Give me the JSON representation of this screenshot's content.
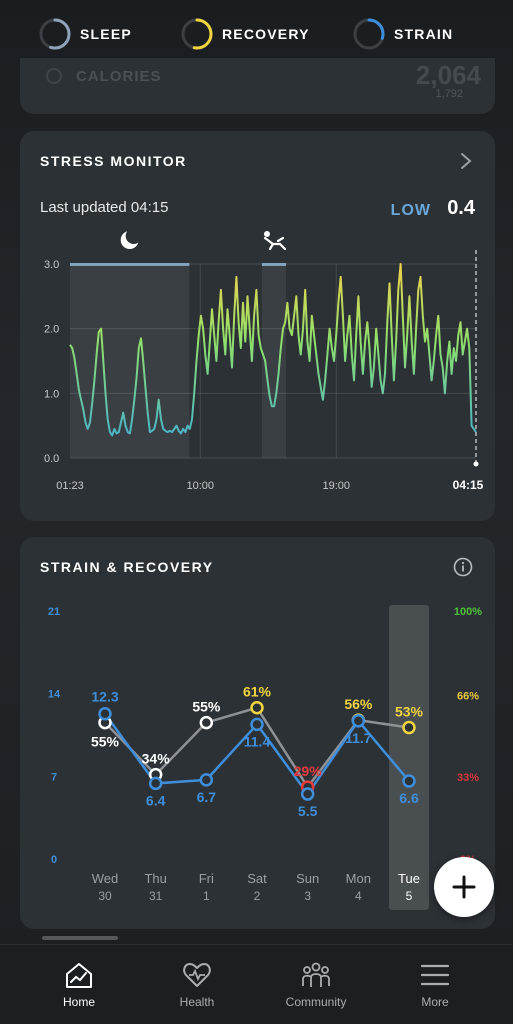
{
  "top_tabs": [
    {
      "label": "SLEEP",
      "color": "#8fa3b8",
      "fraction": 0.55
    },
    {
      "label": "RECOVERY",
      "color": "#f1d53f",
      "fraction": 0.53
    },
    {
      "label": "STRAIN",
      "color": "#3f8edb",
      "fraction": 0.3
    }
  ],
  "peek": {
    "label": "CALORIES",
    "value": "2,064",
    "sub": "1,792"
  },
  "stress": {
    "title": "STRESS MONITOR",
    "last_updated": "Last updated 04:15",
    "level_label": "LOW",
    "level_value": "0.4",
    "chart_data": {
      "type": "line",
      "y_ticks": [
        "3.0",
        "2.0",
        "1.0",
        "0.0"
      ],
      "ylim": [
        0,
        3
      ],
      "x_ticks": [
        "01:23",
        "10:00",
        "19:00",
        "04:15"
      ],
      "x_tick_hours": [
        0,
        8.62,
        17.62,
        26.87
      ],
      "xlim_hours": [
        0,
        26.87
      ],
      "sleep_band_hours": [
        0,
        7.9
      ],
      "rest_band_hours": [
        12.7,
        14.3
      ],
      "values": [
        1.75,
        1.7,
        1.55,
        1.3,
        1.05,
        0.9,
        0.75,
        0.55,
        0.45,
        0.55,
        0.85,
        1.2,
        1.6,
        1.95,
        2.0,
        1.5,
        1.0,
        0.6,
        0.4,
        0.35,
        0.45,
        0.38,
        0.4,
        0.55,
        0.7,
        0.5,
        0.4,
        0.38,
        0.6,
        0.9,
        1.25,
        1.7,
        1.85,
        1.5,
        1.1,
        0.7,
        0.4,
        0.42,
        0.45,
        0.6,
        0.9,
        0.6,
        0.45,
        0.42,
        0.4,
        0.42,
        0.4,
        0.45,
        0.5,
        0.42,
        0.38,
        0.45,
        0.4,
        0.5,
        0.45,
        0.6,
        1.0,
        1.5,
        1.9,
        2.2,
        2.0,
        1.6,
        1.3,
        1.8,
        2.3,
        1.9,
        1.5,
        2.1,
        2.6,
        2.0,
        1.6,
        2.3,
        1.9,
        1.4,
        2.2,
        2.8,
        2.1,
        1.7,
        2.4,
        1.8,
        2.5,
        2.0,
        1.5,
        2.2,
        2.6,
        1.9,
        1.7,
        1.6,
        1.5,
        1.2,
        0.95,
        0.8,
        0.8,
        1.0,
        1.3,
        1.7,
        2.0,
        2.1,
        2.4,
        2.0,
        1.9,
        2.2,
        2.5,
        1.9,
        1.6,
        2.0,
        2.6,
        1.8,
        1.5,
        2.2,
        1.9,
        1.6,
        1.3,
        1.1,
        0.9,
        1.2,
        1.6,
        2.0,
        1.7,
        1.5,
        1.9,
        2.4,
        2.8,
        2.2,
        1.5,
        1.9,
        2.2,
        1.6,
        1.2,
        1.9,
        2.5,
        1.8,
        1.3,
        1.8,
        2.1,
        1.7,
        1.1,
        1.4,
        2.0,
        1.6,
        1.2,
        1.0,
        1.3,
        2.1,
        2.7,
        1.9,
        1.2,
        1.8,
        2.6,
        3.0,
        2.2,
        1.4,
        1.9,
        2.5,
        1.8,
        1.3,
        2.0,
        2.6,
        2.8,
        2.2,
        1.8,
        2.0,
        1.6,
        1.2,
        1.5,
        1.9,
        2.2,
        1.6,
        1.4,
        1.0,
        1.5,
        1.8,
        1.3,
        1.7,
        1.5,
        1.9,
        2.1,
        1.6,
        1.8,
        2.0,
        1.7,
        0.5,
        0.45,
        0.4
      ]
    }
  },
  "strain_recovery": {
    "title": "STRAIN & RECOVERY",
    "chart_data": {
      "type": "line",
      "categories": [
        {
          "day": "Wed",
          "date": "30"
        },
        {
          "day": "Thu",
          "date": "31"
        },
        {
          "day": "Fri",
          "date": "1"
        },
        {
          "day": "Sat",
          "date": "2"
        },
        {
          "day": "Sun",
          "date": "3"
        },
        {
          "day": "Mon",
          "date": "4"
        },
        {
          "day": "Tue",
          "date": "5"
        }
      ],
      "left_ticks": [
        "21",
        "14",
        "7",
        "0"
      ],
      "left_ylim": [
        0,
        21
      ],
      "right_ticks": [
        {
          "label": "100%",
          "color": "#4fc43a"
        },
        {
          "label": "66%",
          "color": "#e8c93d"
        },
        {
          "label": "33%",
          "color": "#d9363b"
        },
        {
          "label": "0%",
          "color": "#d9363b"
        }
      ],
      "right_ylim": [
        0,
        100
      ],
      "highlight_index": 6,
      "series": [
        {
          "name": "Strain",
          "color": "#3f8edb",
          "values": [
            12.3,
            6.4,
            6.7,
            11.4,
            5.5,
            11.7,
            6.6
          ],
          "labels": [
            "12.3",
            "6.4",
            "6.7",
            "11.4",
            "5.5",
            "11.7",
            "6.6"
          ]
        },
        {
          "name": "Recovery",
          "color": "#8e9296",
          "values": [
            55,
            34,
            55,
            61,
            29,
            56,
            53
          ],
          "labels": [
            "55%",
            "34%",
            "55%",
            "61%",
            "29%",
            "56%",
            "53%"
          ],
          "point_colors": [
            "#ffffff",
            "#ffffff",
            "#ffffff",
            "#f1d53f",
            "#e53b3f",
            "#f1d53f",
            "#f1d53f"
          ]
        }
      ]
    }
  },
  "nav": [
    {
      "label": "Home",
      "icon": "home-chart-icon",
      "active": true
    },
    {
      "label": "Health",
      "icon": "heart-pulse-icon",
      "active": false
    },
    {
      "label": "Community",
      "icon": "people-icon",
      "active": false
    },
    {
      "label": "More",
      "icon": "hamburger-menu-icon",
      "active": false
    }
  ],
  "fab_icon": "plus-icon"
}
